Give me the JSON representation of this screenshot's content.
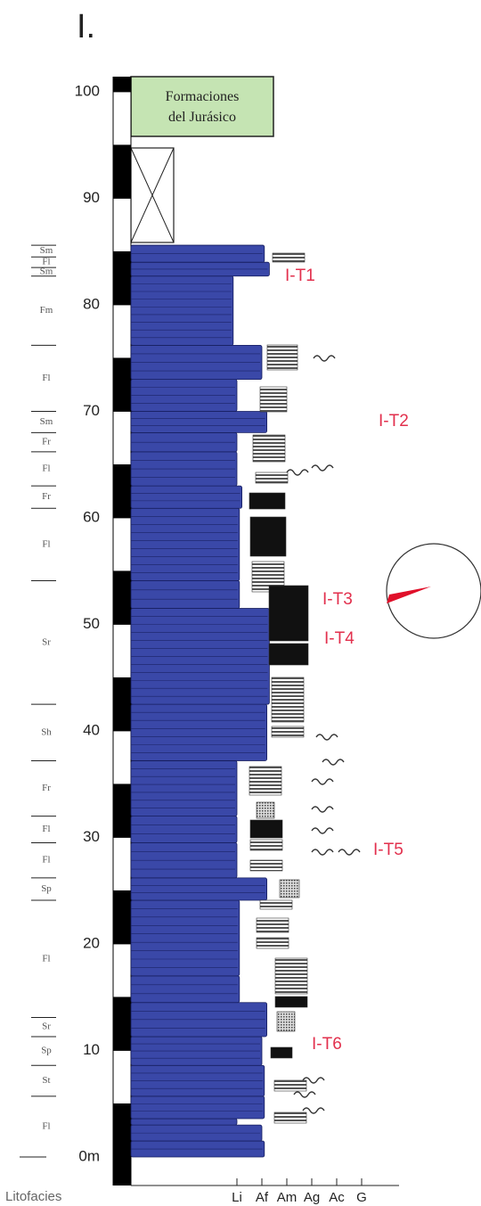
{
  "title": "I.",
  "height_axis": {
    "lim": [
      0,
      100
    ],
    "ticks": [
      {
        "value": 0,
        "label": "0m"
      },
      10,
      20,
      30,
      40,
      50,
      60,
      70,
      80,
      90,
      100
    ]
  },
  "formation_box": {
    "lines": [
      "Formaciones",
      "del Jurásico"
    ]
  },
  "facies_title": "Litofacies",
  "facies": [
    {
      "label": "Fl",
      "base": 0,
      "top": 5.7
    },
    {
      "label": "St",
      "base": 5.7,
      "top": 8.6
    },
    {
      "label": "Sp",
      "base": 8.6,
      "top": 11.3
    },
    {
      "label": "Sr",
      "base": 11.3,
      "top": 13.1
    },
    {
      "label": "Fl",
      "base": 13.1,
      "top": 24.1
    },
    {
      "label": "Sp",
      "base": 24.1,
      "top": 26.2
    },
    {
      "label": "Fl",
      "base": 26.2,
      "top": 29.5
    },
    {
      "label": "Fl",
      "base": 29.5,
      "top": 32
    },
    {
      "label": "Fr",
      "base": 32,
      "top": 37.2
    },
    {
      "label": "Sh",
      "base": 37.2,
      "top": 42.5
    },
    {
      "label": "Sr",
      "base": 42.5,
      "top": 54.1
    },
    {
      "label": "Fl",
      "base": 54.1,
      "top": 60.9
    },
    {
      "label": "Fr",
      "base": 60.9,
      "top": 63
    },
    {
      "label": "Fl",
      "base": 63,
      "top": 66.2
    },
    {
      "label": "Fr",
      "base": 66.2,
      "top": 68
    },
    {
      "label": "Sm",
      "base": 68,
      "top": 70
    },
    {
      "label": "Fl",
      "base": 70,
      "top": 76.2
    },
    {
      "label": "Fm",
      "base": 76.2,
      "top": 82.7
    },
    {
      "label": "Sm",
      "base": 82.7,
      "top": 83.5
    },
    {
      "label": "Fl",
      "base": 83.5,
      "top": 84.5
    },
    {
      "label": "Sm",
      "base": 84.5,
      "top": 85.6
    }
  ],
  "grain_axis": {
    "lim": [
      -3.25,
      7.5
    ],
    "ticks": [
      {
        "value": 1,
        "label": "Li"
      },
      {
        "value": 2,
        "label": "Af"
      },
      {
        "value": 3,
        "label": "Am"
      },
      {
        "value": 4,
        "label": "Ag"
      },
      {
        "value": 5,
        "label": "Ac"
      },
      {
        "value": 6,
        "label": "G"
      }
    ]
  },
  "beds": [
    {
      "base": 0,
      "top": 1.5,
      "grain": 2.1
    },
    {
      "base": 1.5,
      "top": 3,
      "grain": 2
    },
    {
      "base": 3,
      "top": 3.6,
      "grain": 1
    },
    {
      "base": 3.6,
      "top": 5.7,
      "grain": 2.1
    },
    {
      "base": 5.7,
      "top": 8.6,
      "grain": 2.1
    },
    {
      "base": 8.6,
      "top": 11.3,
      "grain": 2
    },
    {
      "base": 11.3,
      "top": 14.5,
      "grain": 2.2
    },
    {
      "base": 14.5,
      "top": 17,
      "grain": 1.1
    },
    {
      "base": 17,
      "top": 24.1,
      "grain": 1.1
    },
    {
      "base": 24.1,
      "top": 26.2,
      "grain": 2.2
    },
    {
      "base": 26.2,
      "top": 29.5,
      "grain": 1
    },
    {
      "base": 29.5,
      "top": 32,
      "grain": 1
    },
    {
      "base": 32,
      "top": 37.2,
      "grain": 1
    },
    {
      "base": 37.2,
      "top": 42.5,
      "grain": 2.2
    },
    {
      "base": 42.5,
      "top": 51.5,
      "grain": 2.3
    },
    {
      "base": 51.5,
      "top": 54.1,
      "grain": 1.1
    },
    {
      "base": 54.1,
      "top": 60.9,
      "grain": 1.1
    },
    {
      "base": 60.9,
      "top": 63,
      "grain": 1.2
    },
    {
      "base": 63,
      "top": 66.2,
      "grain": 1
    },
    {
      "base": 66.2,
      "top": 68,
      "grain": 1
    },
    {
      "base": 68,
      "top": 70,
      "grain": 2.2
    },
    {
      "base": 70,
      "top": 73,
      "grain": 1
    },
    {
      "base": 73,
      "top": 76.2,
      "grain": 2
    },
    {
      "base": 76.2,
      "top": 82.7,
      "grain": 0.85
    },
    {
      "base": 82.7,
      "top": 84,
      "grain": 2.3
    },
    {
      "base": 84,
      "top": 85.6,
      "grain": 2.1
    }
  ],
  "tracts": [
    "I-T1",
    "I-T2",
    "I-T3",
    "I-T4",
    "I-T5",
    "I-T6"
  ]
}
